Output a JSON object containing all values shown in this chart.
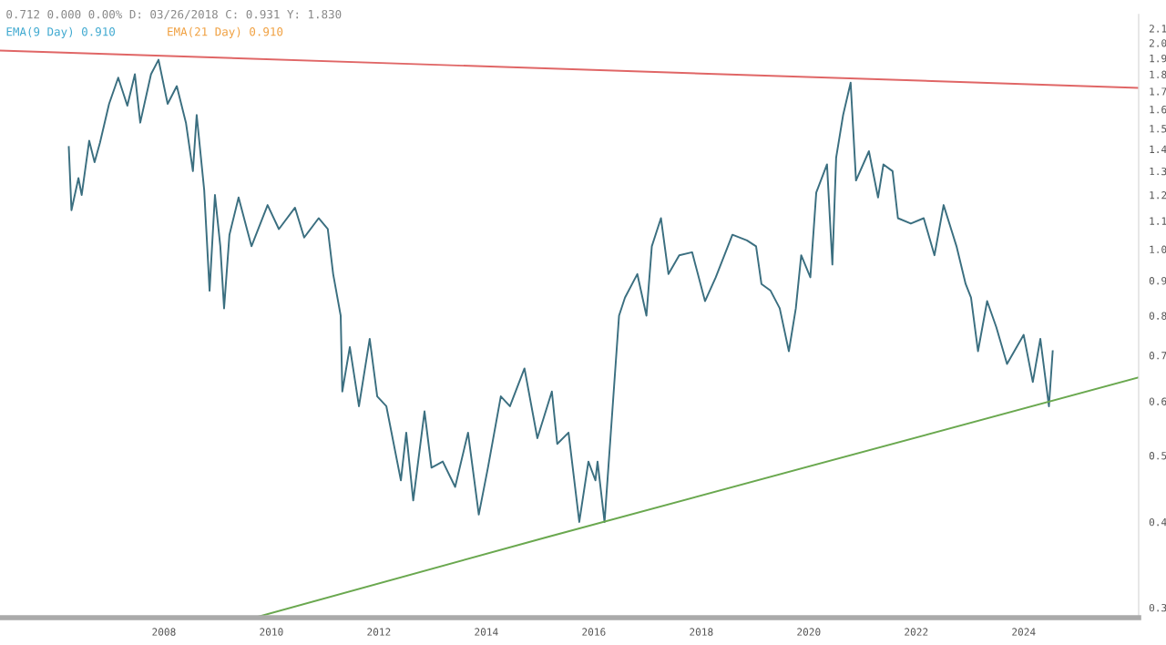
{
  "chart_data": {
    "type": "line",
    "title": "0.712 0.000 0.00% D: 03/26/2018 C: 0.931 Y: 1.830",
    "annotations": [
      "EMA(9 Day) 0.910",
      "EMA(21 Day) 0.910"
    ],
    "log": "y",
    "grid": false,
    "legend": false,
    "xlim": [
      2004.95,
      2026.14
    ],
    "xticks": [
      2008,
      2010,
      2012,
      2014,
      2016,
      2018,
      2020,
      2022,
      2024
    ],
    "ylim": [
      0.29,
      2.2
    ],
    "yticks": [
      0.3,
      0.4,
      0.5,
      0.6,
      0.7,
      0.8,
      0.9,
      {
        "value": 1,
        "label": "1.0"
      },
      1.1,
      1.2,
      1.3,
      1.4,
      1.5,
      1.6,
      1.7,
      1.8,
      1.9,
      {
        "value": 2,
        "label": "2.0"
      },
      2.1
    ],
    "series": [
      {
        "color": "#3b6f80",
        "x": [
          2006.23,
          2006.28,
          2006.41,
          2006.47,
          2006.61,
          2006.71,
          2006.81,
          2006.98,
          2007.15,
          2007.32,
          2007.46,
          2007.56,
          2007.76,
          2007.9,
          2008.07,
          2008.24,
          2008.41,
          2008.54,
          2008.61,
          2008.75,
          2008.85,
          2008.95,
          2009.05,
          2009.12,
          2009.22,
          2009.39,
          2009.63,
          2009.93,
          2010.14,
          2010.44,
          2010.61,
          2010.88,
          2011.05,
          2011.15,
          2011.29,
          2011.32,
          2011.46,
          2011.63,
          2011.83,
          2011.97,
          2012.14,
          2012.41,
          2012.51,
          2012.64,
          2012.85,
          2012.98,
          2013.19,
          2013.42,
          2013.66,
          2013.86,
          2014.03,
          2014.27,
          2014.44,
          2014.71,
          2014.95,
          2015.22,
          2015.32,
          2015.53,
          2015.73,
          2015.9,
          2016.03,
          2016.07,
          2016.2,
          2016.31,
          2016.47,
          2016.58,
          2016.81,
          2016.98,
          2017.08,
          2017.25,
          2017.39,
          2017.59,
          2017.83,
          2018.07,
          2018.27,
          2018.58,
          2018.85,
          2019.02,
          2019.12,
          2019.29,
          2019.46,
          2019.63,
          2019.76,
          2019.86,
          2020.03,
          2020.14,
          2020.34,
          2020.44,
          2020.51,
          2020.64,
          2020.78,
          2020.88,
          2021.12,
          2021.29,
          2021.39,
          2021.56,
          2021.66,
          2021.9,
          2022.14,
          2022.34,
          2022.51,
          2022.75,
          2022.92,
          2023.02,
          2023.15,
          2023.32,
          2023.49,
          2023.69,
          2024.0,
          2024.17,
          2024.31,
          2024.47,
          2024.54
        ],
        "values": [
          1.41,
          1.14,
          1.27,
          1.2,
          1.44,
          1.34,
          1.43,
          1.63,
          1.78,
          1.62,
          1.8,
          1.53,
          1.8,
          1.89,
          1.63,
          1.73,
          1.53,
          1.3,
          1.57,
          1.22,
          0.87,
          1.2,
          1.01,
          0.82,
          1.05,
          1.19,
          1.01,
          1.16,
          1.07,
          1.15,
          1.04,
          1.11,
          1.07,
          0.92,
          0.8,
          0.62,
          0.72,
          0.59,
          0.74,
          0.61,
          0.59,
          0.46,
          0.54,
          0.43,
          0.58,
          0.48,
          0.49,
          0.45,
          0.54,
          0.41,
          0.48,
          0.61,
          0.59,
          0.67,
          0.53,
          0.62,
          0.52,
          0.54,
          0.4,
          0.49,
          0.46,
          0.49,
          0.4,
          0.53,
          0.8,
          0.85,
          0.92,
          0.8,
          1.01,
          1.11,
          0.92,
          0.98,
          0.99,
          0.84,
          0.91,
          1.05,
          1.03,
          1.01,
          0.89,
          0.87,
          0.82,
          0.71,
          0.82,
          0.98,
          0.91,
          1.21,
          1.33,
          0.95,
          1.36,
          1.57,
          1.75,
          1.26,
          1.39,
          1.19,
          1.33,
          1.3,
          1.11,
          1.09,
          1.11,
          0.98,
          1.16,
          1.01,
          0.89,
          0.85,
          0.71,
          0.84,
          0.77,
          0.68,
          0.75,
          0.64,
          0.74,
          0.59,
          0.71
        ]
      },
      {
        "color": "#e06666",
        "x": [
          2004.95,
          2026.14
        ],
        "values": [
          1.95,
          1.72
        ]
      },
      {
        "color": "#6aa84f",
        "x": [
          2009.69,
          2015.12,
          2026.14
        ],
        "values": [
          0.29,
          0.38,
          0.65
        ]
      }
    ]
  }
}
